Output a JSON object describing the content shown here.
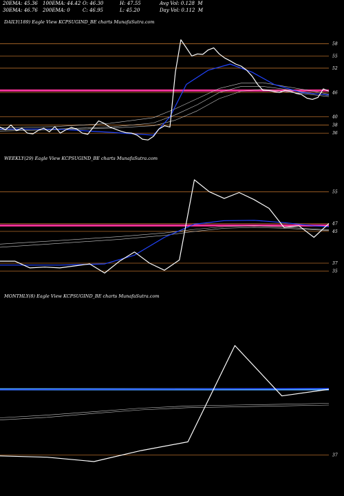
{
  "header": {
    "ema20": "20EMA: 45.36",
    "ema100": "100EMA: 44.42",
    "open": "O: 46.30",
    "high": "H: 47.55",
    "avgvol": "Avg Vol: 0.128  M",
    "ema30": "30EMA: 46.76",
    "ema200": "200EMA: 0",
    "close": "C: 46.95",
    "low": "L: 45.20",
    "dayvol": "Day Vol: 0.112  M"
  },
  "colors": {
    "price": "#ffffff",
    "ema_fast": "#2244ff",
    "ema_slow": "#cccccc",
    "level": "#b36b2a",
    "band_pink": "#ff3399",
    "band_blue": "#4da3ff"
  },
  "chart_data": [
    {
      "title": "DAILY(189) Eagle   View  KCPSUGIND_BE charts MunafaSutra.com",
      "type": "line",
      "ylim": [
        34,
        62
      ],
      "ticks": [
        {
          "value": 58,
          "label": "58"
        },
        {
          "value": 55,
          "label": "55"
        },
        {
          "value": 52,
          "label": "52"
        },
        {
          "value": 46,
          "label": "46"
        },
        {
          "value": 40,
          "label": "40"
        },
        {
          "value": 38,
          "label": "38"
        },
        {
          "value": 36,
          "label": "36"
        }
      ],
      "band": {
        "value": 46.5,
        "color": "pink"
      },
      "series": [
        {
          "role": "price",
          "x": [
            0,
            1,
            2,
            3,
            4,
            5,
            6,
            7,
            8,
            9,
            10,
            11,
            12,
            13,
            14,
            15,
            16,
            17,
            18,
            19,
            20,
            21,
            22,
            23,
            24,
            25,
            26,
            27,
            28,
            29,
            30,
            31,
            32,
            33,
            34,
            35,
            36,
            37,
            38,
            39,
            40,
            41,
            42,
            43,
            44,
            45,
            46,
            47,
            48,
            49,
            50,
            51,
            52,
            53,
            54,
            55,
            56,
            57,
            58,
            59,
            60
          ],
          "values": [
            37.5,
            36.8,
            38.0,
            36.6,
            37.2,
            36.0,
            35.8,
            36.7,
            37.2,
            36.3,
            37.6,
            36.0,
            36.8,
            37.4,
            37.0,
            36.0,
            35.7,
            37.4,
            39.0,
            38.4,
            37.5,
            37.0,
            36.5,
            36.1,
            36.0,
            35.5,
            34.5,
            34.3,
            35.2,
            37.0,
            37.8,
            37.5,
            51.0,
            59.0,
            57.0,
            55.0,
            55.5,
            55.4,
            56.5,
            57.0,
            55.5,
            54.5,
            53.8,
            53.0,
            52.5,
            51.5,
            50.0,
            48.0,
            46.5,
            46.5,
            46.2,
            46.0,
            46.5,
            46.3,
            45.8,
            45.5,
            44.6,
            44.3,
            44.8,
            46.9,
            46.3
          ]
        },
        {
          "role": "ema_fast",
          "x": [
            0,
            10,
            20,
            28,
            31,
            34,
            38,
            42,
            46,
            50,
            55,
            60
          ],
          "values": [
            37.0,
            37.0,
            36.2,
            35.5,
            40.0,
            48.0,
            51.5,
            53.0,
            51.0,
            48.0,
            46.0,
            45.4
          ]
        },
        {
          "role": "ema_slow",
          "x": [
            0,
            10,
            20,
            28,
            32,
            36,
            40,
            44,
            48,
            52,
            56,
            60
          ],
          "values": [
            36.8,
            37.0,
            37.5,
            38.5,
            40.5,
            43.0,
            46.0,
            47.5,
            47.5,
            46.8,
            46.0,
            45.3
          ]
        },
        {
          "role": "ema_slow",
          "x": [
            0,
            10,
            20,
            28,
            32,
            36,
            40,
            44,
            48,
            52,
            56,
            60
          ],
          "values": [
            37.3,
            37.6,
            38.4,
            39.8,
            42.0,
            44.5,
            47.0,
            48.3,
            48.4,
            47.5,
            46.6,
            45.6
          ]
        },
        {
          "role": "ema_slow",
          "x": [
            0,
            10,
            20,
            28,
            32,
            36,
            40,
            44,
            48,
            52,
            56,
            60
          ],
          "values": [
            36.5,
            36.8,
            37.2,
            37.8,
            39.2,
            41.5,
            44.5,
            46.3,
            46.8,
            46.2,
            45.6,
            45.0
          ]
        }
      ]
    },
    {
      "title": "WEEKLY(29) Eagle   View  KCPSUGIND_BE charts MunafaSutra.com",
      "type": "line",
      "ylim": [
        33,
        62
      ],
      "ticks": [
        {
          "value": 55,
          "label": "55"
        },
        {
          "value": 47,
          "label": "47"
        },
        {
          "value": 45,
          "label": "45"
        },
        {
          "value": 37,
          "label": "37"
        },
        {
          "value": 35,
          "label": "35"
        }
      ],
      "band": {
        "value": 46.5,
        "color": "pink"
      },
      "series": [
        {
          "role": "price",
          "x": [
            0,
            1,
            2,
            3,
            4,
            5,
            6,
            7,
            8,
            9,
            10,
            11,
            12,
            13,
            14,
            15,
            16,
            17,
            18,
            19,
            20,
            21,
            22
          ],
          "values": [
            37.5,
            37.5,
            35.8,
            36.0,
            35.8,
            36.3,
            36.8,
            34.5,
            37.5,
            39.8,
            37.0,
            35.2,
            37.8,
            58.0,
            55.0,
            53.3,
            54.8,
            53.0,
            50.8,
            46.0,
            46.4,
            43.5,
            47.0
          ]
        },
        {
          "role": "ema_fast",
          "x": [
            0,
            4,
            7,
            9,
            11,
            13,
            15,
            17,
            19,
            21,
            22
          ],
          "values": [
            36.5,
            36.5,
            36.8,
            39.0,
            43.5,
            46.8,
            47.7,
            47.8,
            47.2,
            46.4,
            46.2
          ]
        },
        {
          "role": "ema_slow",
          "x": [
            0,
            4,
            8,
            11,
            13,
            15,
            17,
            19,
            21,
            22
          ],
          "values": [
            41.0,
            42.0,
            43.0,
            44.0,
            45.0,
            45.8,
            46.0,
            45.8,
            45.4,
            45.2
          ]
        },
        {
          "role": "ema_slow",
          "x": [
            0,
            4,
            8,
            11,
            13,
            15,
            17,
            19,
            21,
            22
          ],
          "values": [
            41.8,
            42.7,
            43.7,
            44.6,
            45.5,
            46.2,
            46.4,
            46.1,
            45.6,
            45.4
          ]
        }
      ]
    },
    {
      "title": "MONTHLY(8) Eagle   View  KCPSUGIND_BE charts MunafaSutra.com",
      "type": "line",
      "ylim": [
        30,
        72
      ],
      "ticks": [
        {
          "value": 37,
          "label": "37"
        }
      ],
      "band": {
        "value": 52.0,
        "color": "blue"
      },
      "series": [
        {
          "role": "price",
          "x": [
            0,
            1,
            2,
            3,
            4,
            5,
            6,
            7
          ],
          "values": [
            36.8,
            36.5,
            35.5,
            38.0,
            40.0,
            62.0,
            50.5,
            52.0
          ]
        },
        {
          "role": "ema_fast",
          "x": [
            0,
            7
          ],
          "values": [
            51.9,
            52.2
          ]
        },
        {
          "role": "ema_slow",
          "x": [
            0,
            1,
            2,
            3,
            4,
            5,
            6,
            7
          ],
          "values": [
            45.0,
            45.6,
            46.5,
            47.3,
            47.8,
            48.0,
            48.2,
            48.4
          ]
        },
        {
          "role": "ema_slow",
          "x": [
            0,
            1,
            2,
            3,
            4,
            5,
            6,
            7
          ],
          "values": [
            45.5,
            46.1,
            46.9,
            47.7,
            48.2,
            48.4,
            48.6,
            48.8
          ]
        }
      ]
    }
  ]
}
